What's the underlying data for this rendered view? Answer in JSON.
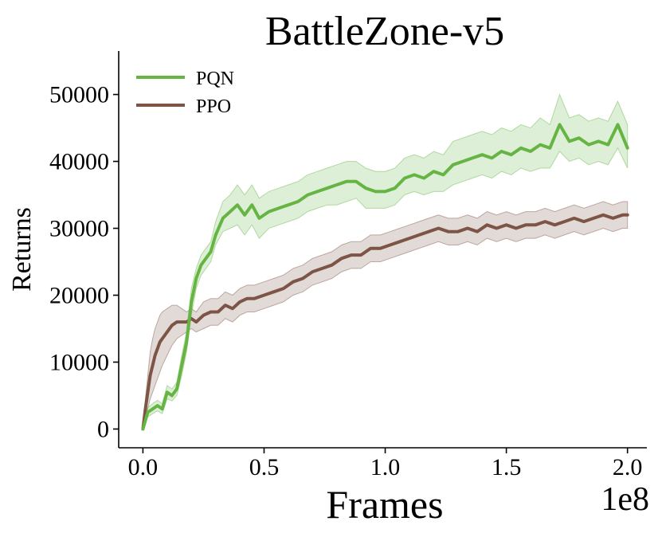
{
  "chart_data": {
    "type": "line",
    "title": "BattleZone-v5",
    "xlabel": "Frames",
    "ylabel": "Returns",
    "x_offset_label": "1e8",
    "xlim": [
      -0.1,
      2.08
    ],
    "ylim": [
      -2800,
      56500
    ],
    "xticks": [
      0.0,
      0.5,
      1.0,
      1.5,
      2.0
    ],
    "xtick_labels": [
      "0.0",
      "0.5",
      "1.0",
      "1.5",
      "2.0"
    ],
    "yticks": [
      0,
      10000,
      20000,
      30000,
      40000,
      50000
    ],
    "ytick_labels": [
      "0",
      "10000",
      "20000",
      "30000",
      "40000",
      "50000"
    ],
    "legend": {
      "position": "top-left",
      "entries": [
        "PQN",
        "PPO"
      ]
    },
    "grid": false,
    "series": [
      {
        "name": "PQN",
        "color": "#66b544",
        "band_color": "#66b544",
        "x": [
          0.0,
          0.02,
          0.04,
          0.06,
          0.08,
          0.1,
          0.12,
          0.14,
          0.16,
          0.18,
          0.2,
          0.22,
          0.24,
          0.26,
          0.28,
          0.3,
          0.33,
          0.36,
          0.39,
          0.42,
          0.45,
          0.48,
          0.52,
          0.56,
          0.6,
          0.64,
          0.68,
          0.72,
          0.76,
          0.8,
          0.84,
          0.88,
          0.92,
          0.96,
          1.0,
          1.04,
          1.08,
          1.12,
          1.16,
          1.2,
          1.24,
          1.28,
          1.32,
          1.36,
          1.4,
          1.44,
          1.48,
          1.52,
          1.56,
          1.6,
          1.64,
          1.68,
          1.72,
          1.76,
          1.8,
          1.84,
          1.88,
          1.92,
          1.96,
          2.0
        ],
        "values": [
          0,
          2500,
          3000,
          3500,
          3000,
          5500,
          5000,
          6000,
          9500,
          13000,
          19000,
          22500,
          24500,
          25500,
          26500,
          29000,
          31500,
          32500,
          33500,
          32000,
          33500,
          31500,
          32500,
          33000,
          33500,
          34000,
          35000,
          35500,
          36000,
          36500,
          37000,
          37000,
          36000,
          35500,
          35500,
          36000,
          37500,
          38000,
          37500,
          38500,
          38000,
          39500,
          40000,
          40500,
          41000,
          40500,
          41500,
          41000,
          42000,
          41500,
          42500,
          42000,
          45500,
          43000,
          43500,
          42500,
          43000,
          42500,
          45500,
          42000
        ],
        "lower": [
          0,
          1800,
          2300,
          2700,
          2300,
          4500,
          4200,
          5000,
          8000,
          11500,
          17000,
          21000,
          23000,
          24000,
          25000,
          27500,
          29500,
          30000,
          30500,
          29000,
          30500,
          28500,
          30000,
          30500,
          31000,
          31500,
          32500,
          33000,
          33500,
          33500,
          34000,
          34500,
          33000,
          33000,
          33000,
          33500,
          35000,
          35500,
          35000,
          35500,
          35500,
          36500,
          37000,
          37500,
          38000,
          37500,
          38500,
          38000,
          39000,
          38500,
          39000,
          39000,
          41500,
          40000,
          40500,
          39500,
          40000,
          39500,
          42000,
          39000
        ],
        "upper": [
          0,
          3200,
          3800,
          4300,
          3800,
          6500,
          6000,
          7000,
          11000,
          14500,
          21000,
          24000,
          26000,
          27000,
          28000,
          31000,
          34000,
          35000,
          36500,
          35000,
          36500,
          34500,
          35500,
          36000,
          36500,
          37000,
          38000,
          38500,
          39000,
          39500,
          40000,
          40000,
          39000,
          38500,
          38500,
          39000,
          40500,
          41000,
          40500,
          41500,
          41000,
          43000,
          43500,
          44000,
          44500,
          44000,
          45000,
          44500,
          45500,
          45000,
          46500,
          45500,
          50000,
          46500,
          47000,
          46000,
          46500,
          46000,
          49000,
          45500
        ]
      },
      {
        "name": "PPO",
        "color": "#7d5546",
        "band_color": "#7d5546",
        "x": [
          0.0,
          0.01,
          0.02,
          0.03,
          0.04,
          0.05,
          0.06,
          0.07,
          0.08,
          0.1,
          0.12,
          0.14,
          0.16,
          0.18,
          0.2,
          0.22,
          0.25,
          0.28,
          0.31,
          0.34,
          0.37,
          0.4,
          0.43,
          0.46,
          0.5,
          0.54,
          0.58,
          0.62,
          0.66,
          0.7,
          0.74,
          0.78,
          0.82,
          0.86,
          0.9,
          0.94,
          0.98,
          1.02,
          1.06,
          1.1,
          1.14,
          1.18,
          1.22,
          1.26,
          1.3,
          1.34,
          1.38,
          1.42,
          1.46,
          1.5,
          1.54,
          1.58,
          1.62,
          1.66,
          1.7,
          1.74,
          1.78,
          1.82,
          1.86,
          1.9,
          1.94,
          1.98,
          2.0
        ],
        "values": [
          0,
          3000,
          5500,
          8000,
          9500,
          11000,
          12000,
          13000,
          13500,
          14500,
          15500,
          16000,
          16000,
          16000,
          16500,
          16000,
          17000,
          17500,
          17500,
          18500,
          18000,
          19000,
          19500,
          19500,
          20000,
          20500,
          21000,
          22000,
          22500,
          23500,
          24000,
          24500,
          25500,
          26000,
          26000,
          27000,
          27000,
          27500,
          28000,
          28500,
          29000,
          29500,
          30000,
          29500,
          29500,
          30000,
          29500,
          30500,
          30000,
          30500,
          30000,
          30500,
          30500,
          31000,
          30500,
          31000,
          31500,
          31000,
          31500,
          32000,
          31500,
          32000,
          32000
        ],
        "lower": [
          0,
          1500,
          3000,
          4500,
          5500,
          6500,
          7500,
          8500,
          9500,
          11000,
          12500,
          13500,
          14000,
          14500,
          15000,
          14500,
          15000,
          15500,
          15500,
          16500,
          16000,
          17000,
          17500,
          17500,
          18000,
          18500,
          19000,
          20000,
          20500,
          21500,
          22000,
          22500,
          23500,
          24000,
          24000,
          25000,
          25000,
          25500,
          26000,
          26500,
          27000,
          27500,
          28000,
          27500,
          27500,
          28000,
          27500,
          28500,
          28000,
          28500,
          28000,
          28500,
          28500,
          29000,
          28500,
          29000,
          29500,
          29000,
          29500,
          30000,
          29500,
          30000,
          30000
        ],
        "upper": [
          0,
          4500,
          8000,
          11500,
          13500,
          15000,
          16000,
          17000,
          17500,
          18000,
          18500,
          18500,
          18000,
          17500,
          18000,
          17500,
          19000,
          19500,
          19500,
          20500,
          20000,
          21000,
          21500,
          21500,
          22000,
          22500,
          23000,
          24000,
          24500,
          25500,
          26000,
          26500,
          27500,
          28000,
          28000,
          29000,
          29000,
          29500,
          30000,
          30500,
          31000,
          31500,
          32000,
          31500,
          31500,
          32000,
          31500,
          32500,
          32000,
          32500,
          32000,
          32500,
          32500,
          33000,
          32500,
          33000,
          33500,
          33000,
          33500,
          34000,
          33500,
          34000,
          34000
        ]
      }
    ]
  }
}
